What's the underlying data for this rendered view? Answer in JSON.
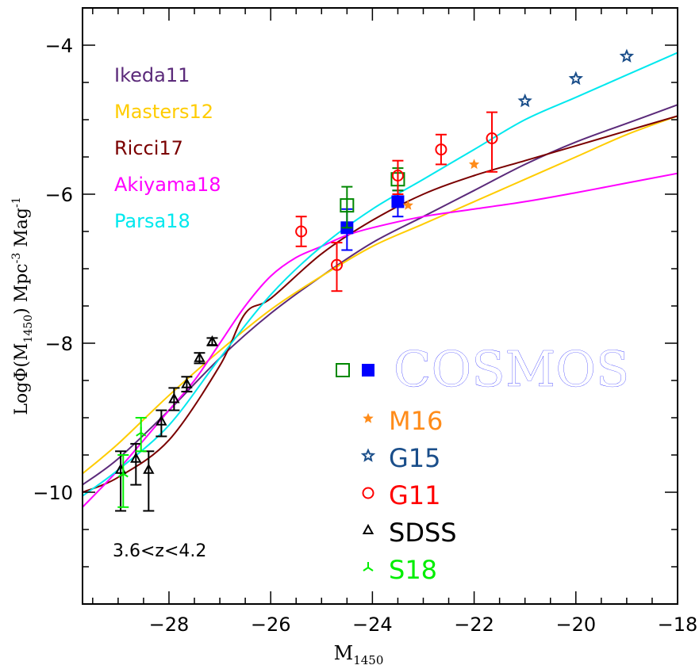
{
  "chart_data": {
    "type": "scatter",
    "xlabel": "M",
    "xlabel_sub": "1450",
    "ylabel_prefix": "LogΦ(M",
    "ylabel_sub": "1450",
    "ylabel_suffix": ") Mpc",
    "ylabel_exp1": "-3",
    "ylabel_mid": " Mag",
    "ylabel_exp2": "-1",
    "xlim": [
      -29.7,
      -18
    ],
    "ylim": [
      -11.5,
      -3.5
    ],
    "xticks": [
      -28,
      -26,
      -24,
      -22,
      -20,
      -18
    ],
    "xtick_labels": [
      "−28",
      "−26",
      "−24",
      "−22",
      "−20",
      "−18"
    ],
    "yticks": [
      -10,
      -8,
      -6,
      -4
    ],
    "ytick_labels": [
      "−10",
      "−8",
      "−6",
      "−4"
    ],
    "annotation": "3.6<z<4.2",
    "model_curves": [
      {
        "name": "Ikeda11",
        "color": "#5b2a7a",
        "x": [
          -29.7,
          -29,
          -28,
          -27,
          -26,
          -25,
          -24,
          -23,
          -22,
          -21,
          -20,
          -19,
          -18
        ],
        "y": [
          -9.9,
          -9.55,
          -8.9,
          -8.2,
          -7.6,
          -7.1,
          -6.65,
          -6.3,
          -5.95,
          -5.6,
          -5.3,
          -5.05,
          -4.8
        ]
      },
      {
        "name": "Masters12",
        "color": "#ffcc00",
        "x": [
          -29.7,
          -29,
          -28,
          -27,
          -26,
          -25,
          -24,
          -23,
          -22,
          -21,
          -20,
          -19,
          -18
        ],
        "y": [
          -9.75,
          -9.35,
          -8.7,
          -8.1,
          -7.55,
          -7.1,
          -6.7,
          -6.4,
          -6.1,
          -5.8,
          -5.5,
          -5.2,
          -4.95
        ]
      },
      {
        "name": "Ricci17",
        "color": "#7a0000",
        "x": [
          -29.7,
          -29,
          -28,
          -27,
          -26.5,
          -26,
          -25,
          -24,
          -23,
          -22,
          -21,
          -20,
          -19,
          -18
        ],
        "y": [
          -10.0,
          -9.8,
          -9.3,
          -8.3,
          -7.6,
          -7.4,
          -6.8,
          -6.35,
          -6.0,
          -5.75,
          -5.55,
          -5.35,
          -5.15,
          -4.95
        ]
      },
      {
        "name": "Akiyama18",
        "color": "#ff00ff",
        "x": [
          -29.7,
          -29,
          -28,
          -27.5,
          -27,
          -26.5,
          -26,
          -25.5,
          -25,
          -24.5,
          -24,
          -23,
          -22,
          -21,
          -20,
          -19,
          -18
        ],
        "y": [
          -10.2,
          -9.7,
          -8.9,
          -8.5,
          -8.0,
          -7.5,
          -7.1,
          -6.85,
          -6.7,
          -6.55,
          -6.45,
          -6.3,
          -6.2,
          -6.1,
          -5.98,
          -5.85,
          -5.72
        ]
      },
      {
        "name": "Parsa18",
        "color": "#00e8ee",
        "x": [
          -29.7,
          -29,
          -28,
          -27,
          -26,
          -25,
          -24,
          -23,
          -22,
          -21,
          -20,
          -19,
          -18
        ],
        "y": [
          -10.05,
          -9.7,
          -9.1,
          -8.2,
          -7.35,
          -6.7,
          -6.2,
          -5.8,
          -5.4,
          -5.0,
          -4.7,
          -4.4,
          -4.1
        ]
      }
    ],
    "datasets": [
      {
        "name": "COSMOS",
        "marker": "square-filled",
        "color": "#0000ff",
        "points": [
          {
            "x": -24.5,
            "y": -6.45,
            "ylo": -6.75,
            "yhi": -6.2
          },
          {
            "x": -23.5,
            "y": -6.1,
            "ylo": -6.3,
            "yhi": -5.95
          }
        ]
      },
      {
        "name": "COSMOS-open",
        "marker": "square-open",
        "color": "#008800",
        "points": [
          {
            "x": -24.5,
            "y": -6.15,
            "ylo": -6.45,
            "yhi": -5.9
          },
          {
            "x": -23.5,
            "y": -5.8,
            "ylo": -5.95,
            "yhi": -5.65
          }
        ]
      },
      {
        "name": "M16",
        "marker": "star-filled",
        "color": "#ff8c1a",
        "points": [
          {
            "x": -23.3,
            "y": -6.15
          },
          {
            "x": -22.0,
            "y": -5.6
          }
        ]
      },
      {
        "name": "G15",
        "marker": "star-open",
        "color": "#1a4e8a",
        "points": [
          {
            "x": -21.0,
            "y": -4.75
          },
          {
            "x": -20.0,
            "y": -4.45
          },
          {
            "x": -19.0,
            "y": -4.15
          }
        ]
      },
      {
        "name": "G11",
        "marker": "circle-open",
        "color": "#ff0000",
        "points": [
          {
            "x": -25.4,
            "y": -6.5,
            "ylo": -6.7,
            "yhi": -6.3
          },
          {
            "x": -24.7,
            "y": -6.95,
            "ylo": -7.3,
            "yhi": -6.65
          },
          {
            "x": -23.5,
            "y": -5.75,
            "ylo": -6.0,
            "yhi": -5.55
          },
          {
            "x": -22.65,
            "y": -5.4,
            "ylo": -5.6,
            "yhi": -5.2
          },
          {
            "x": -21.65,
            "y": -5.25,
            "ylo": -5.7,
            "yhi": -4.9
          }
        ]
      },
      {
        "name": "SDSS",
        "marker": "triangle-open",
        "color": "#000000",
        "points": [
          {
            "x": -28.95,
            "y": -9.7,
            "ylo": -10.25,
            "yhi": -9.45
          },
          {
            "x": -28.65,
            "y": -9.55,
            "ylo": -9.9,
            "yhi": -9.35
          },
          {
            "x": -28.4,
            "y": -9.7,
            "ylo": -10.25,
            "yhi": -9.45
          },
          {
            "x": -28.15,
            "y": -9.05,
            "ylo": -9.25,
            "yhi": -8.9
          },
          {
            "x": -27.9,
            "y": -8.75,
            "ylo": -8.9,
            "yhi": -8.6
          },
          {
            "x": -27.65,
            "y": -8.55,
            "ylo": -8.65,
            "yhi": -8.45
          },
          {
            "x": -27.4,
            "y": -8.2,
            "ylo": -8.27,
            "yhi": -8.13
          },
          {
            "x": -27.15,
            "y": -7.98,
            "ylo": -8.03,
            "yhi": -7.93
          }
        ]
      },
      {
        "name": "S18",
        "marker": "tri-open",
        "color": "#00ee00",
        "points": [
          {
            "x": -28.9,
            "y": -9.75,
            "ylo": -10.2,
            "yhi": -9.5
          },
          {
            "x": -28.55,
            "y": -9.2,
            "ylo": -9.45,
            "yhi": -9.0
          }
        ]
      }
    ],
    "legend_models": [
      "Ikeda11",
      "Masters12",
      "Ricci17",
      "Akiyama18",
      "Parsa18"
    ],
    "legend_data": [
      {
        "label": "COSMOS",
        "color": "#0000ff"
      },
      {
        "label": "M16",
        "color": "#ff8c1a"
      },
      {
        "label": "G15",
        "color": "#1a4e8a"
      },
      {
        "label": "G11",
        "color": "#ff0000"
      },
      {
        "label": "SDSS",
        "color": "#000000"
      },
      {
        "label": "S18",
        "color": "#00ee00"
      }
    ]
  }
}
